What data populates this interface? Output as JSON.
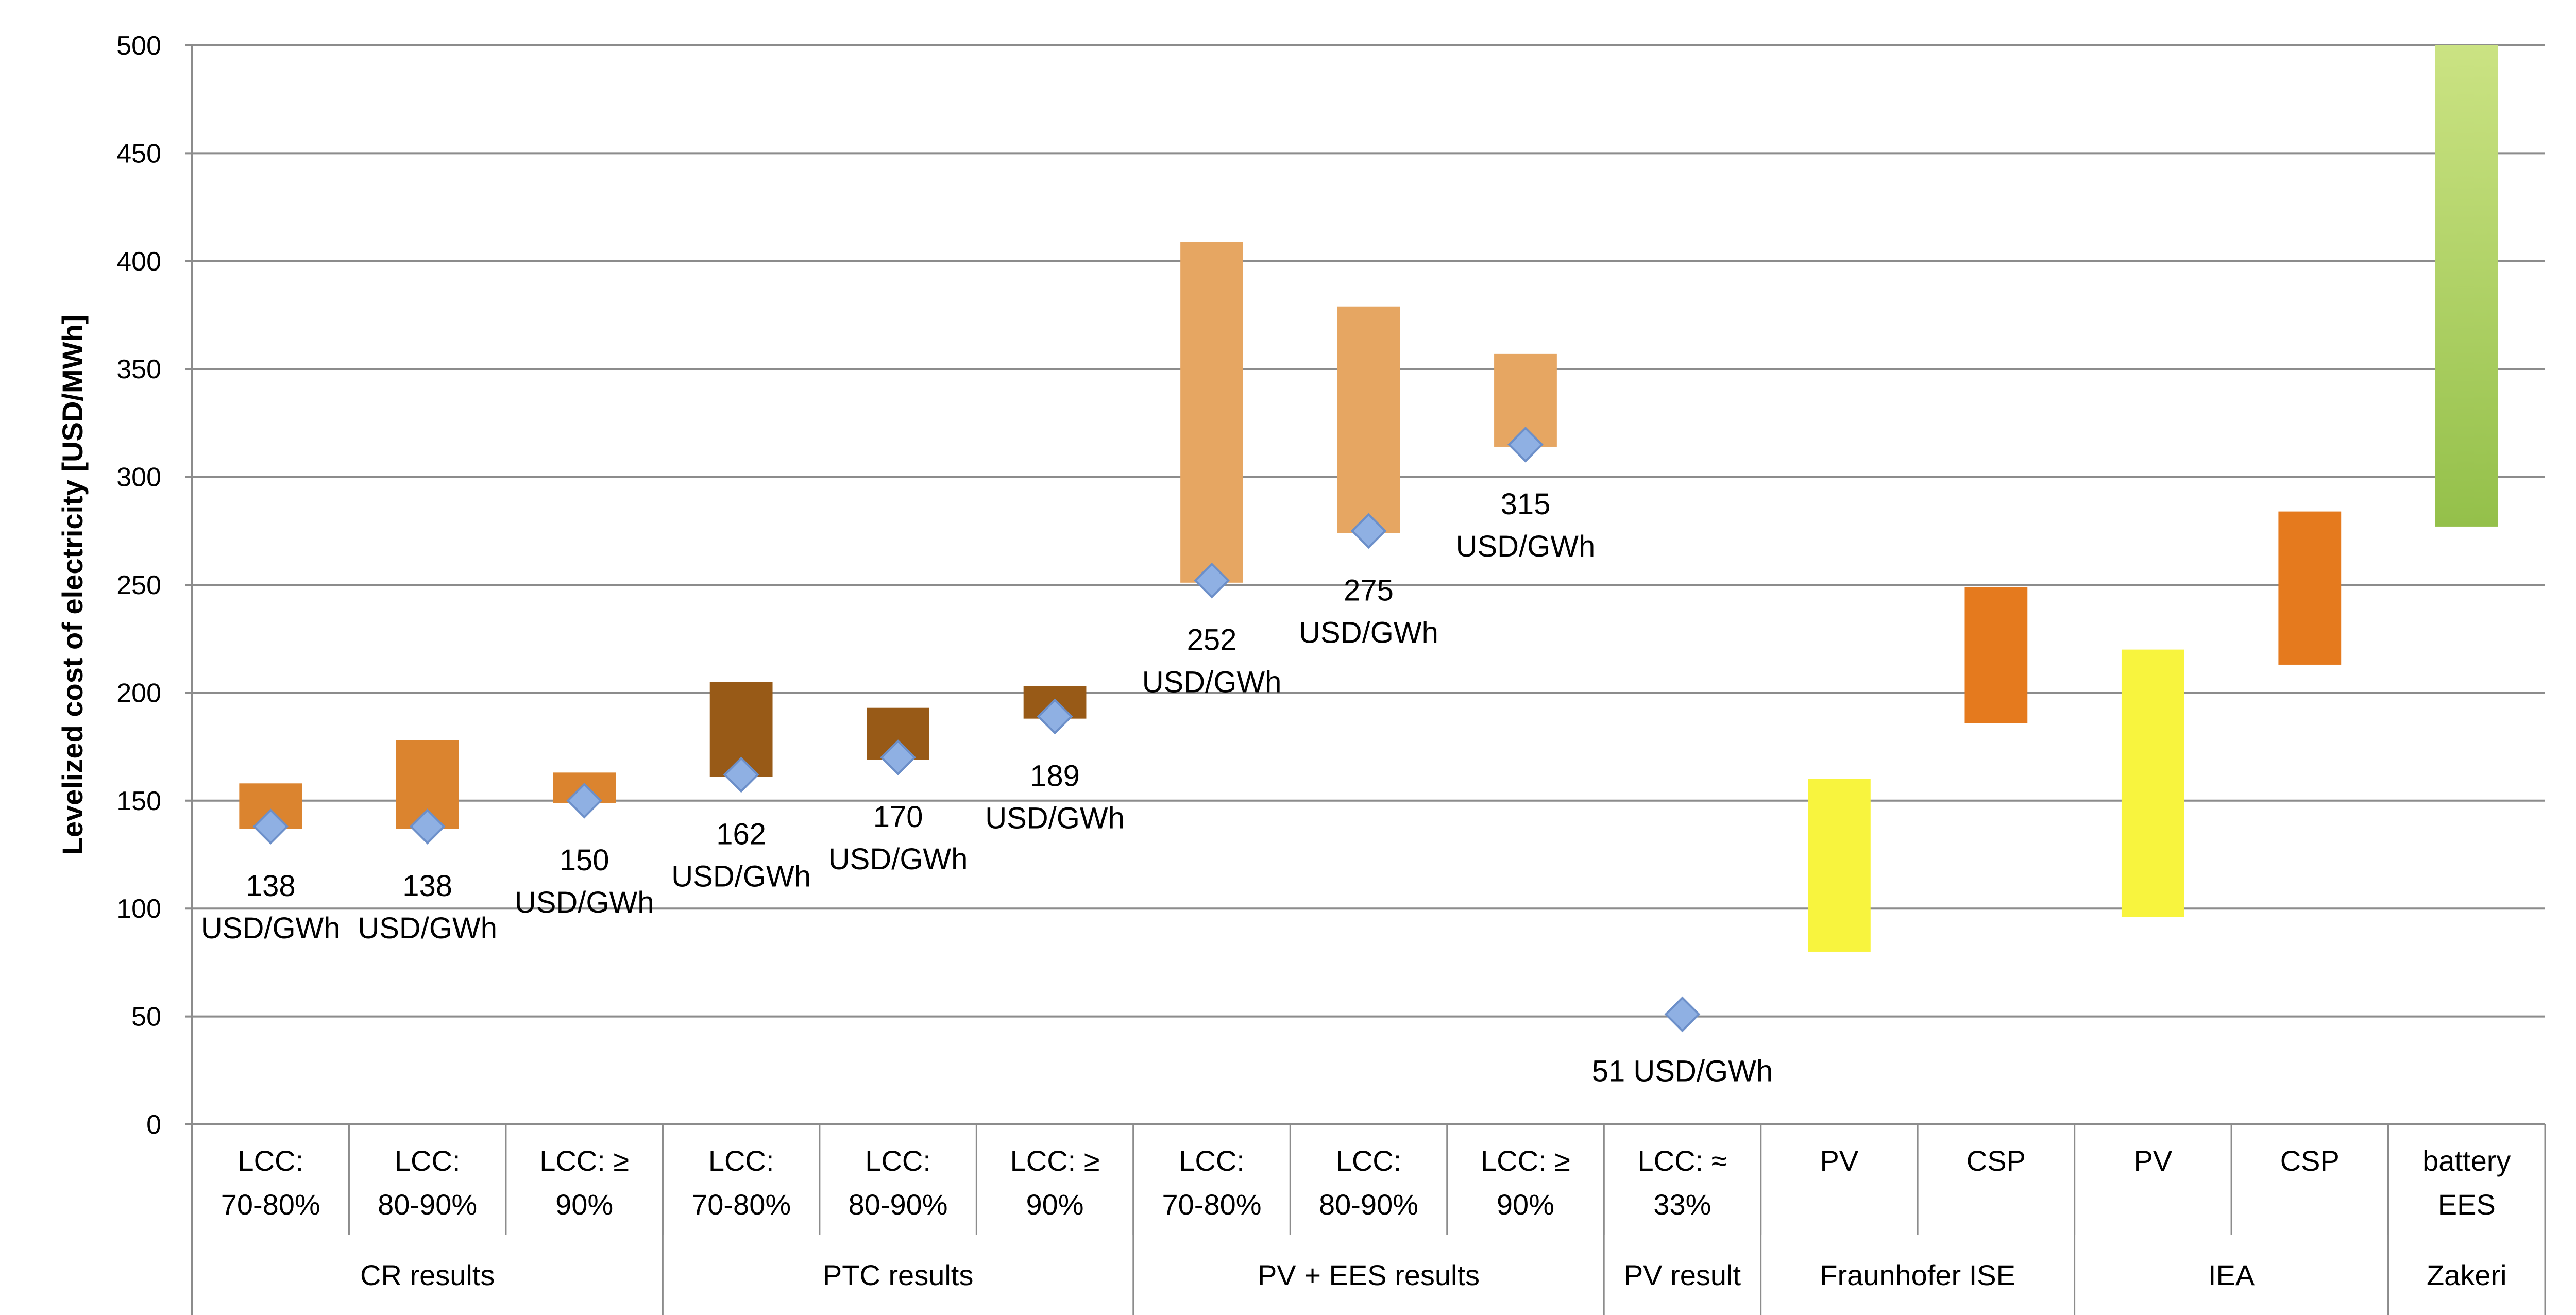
{
  "chart_data": {
    "type": "bar",
    "subtype": "floating-range-with-markers",
    "ylabel": "Levelized cost of electricity [USD/MWh]",
    "xlabel": "",
    "ylim": [
      0,
      500
    ],
    "yticks": [
      0,
      50,
      100,
      150,
      200,
      250,
      300,
      350,
      400,
      450,
      500
    ],
    "grid": true,
    "legend": "none",
    "groups": [
      {
        "label": "CR results",
        "span": [
          0,
          2
        ]
      },
      {
        "label": "PTC results",
        "span": [
          3,
          5
        ]
      },
      {
        "label": "PV + EES results",
        "span": [
          6,
          8
        ]
      },
      {
        "label": "PV result",
        "span": [
          9,
          9
        ]
      },
      {
        "label": "Fraunhofer ISE",
        "span": [
          10,
          11
        ]
      },
      {
        "label": "IEA",
        "span": [
          12,
          13
        ]
      },
      {
        "label": "Zakeri",
        "span": [
          14,
          14
        ]
      }
    ],
    "categories": [
      {
        "lines": [
          "LCC:",
          "70-80%"
        ],
        "low": 137,
        "high": 158,
        "color": "#DB842F",
        "marker": 138,
        "label": [
          "138",
          "USD/GWh"
        ]
      },
      {
        "lines": [
          "LCC:",
          "80-90%"
        ],
        "low": 137,
        "high": 178,
        "color": "#DB842F",
        "marker": 138,
        "label": [
          "138",
          "USD/GWh"
        ]
      },
      {
        "lines": [
          "LCC: ≥",
          "90%"
        ],
        "low": 149,
        "high": 163,
        "color": "#DB842F",
        "marker": 150,
        "label": [
          "150",
          "USD/GWh"
        ]
      },
      {
        "lines": [
          "LCC:",
          "70-80%"
        ],
        "low": 161,
        "high": 205,
        "color": "#985A17",
        "marker": 162,
        "label": [
          "162",
          "USD/GWh"
        ]
      },
      {
        "lines": [
          "LCC:",
          "80-90%"
        ],
        "low": 169,
        "high": 193,
        "color": "#985A17",
        "marker": 170,
        "label": [
          "170",
          "USD/GWh"
        ]
      },
      {
        "lines": [
          "LCC: ≥",
          "90%"
        ],
        "low": 188,
        "high": 203,
        "color": "#985A17",
        "marker": 189,
        "label": [
          "189",
          "USD/GWh"
        ]
      },
      {
        "lines": [
          "LCC:",
          "70-80%"
        ],
        "low": 251,
        "high": 409,
        "color": "#E6A662",
        "marker": 252,
        "label": [
          "252",
          "USD/GWh"
        ]
      },
      {
        "lines": [
          "LCC:",
          "80-90%"
        ],
        "low": 274,
        "high": 379,
        "color": "#E6A662",
        "marker": 275,
        "label": [
          "275",
          "USD/GWh"
        ]
      },
      {
        "lines": [
          "LCC: ≥",
          "90%"
        ],
        "low": 314,
        "high": 357,
        "color": "#E6A662",
        "marker": 315,
        "label": [
          "315",
          "USD/GWh"
        ]
      },
      {
        "lines": [
          "LCC: ≈",
          "33%"
        ],
        "low": null,
        "high": null,
        "color": null,
        "marker": 51,
        "label": [
          "51 USD/GWh"
        ]
      },
      {
        "lines": [
          "PV"
        ],
        "low": 80,
        "high": 160,
        "color": "#F8F43E",
        "marker": null,
        "label": []
      },
      {
        "lines": [
          "CSP"
        ],
        "low": 186,
        "high": 249,
        "color": "#E57A1E",
        "marker": null,
        "label": []
      },
      {
        "lines": [
          "PV"
        ],
        "low": 96,
        "high": 220,
        "color": "#F8F43E",
        "marker": null,
        "label": []
      },
      {
        "lines": [
          "CSP"
        ],
        "low": 213,
        "high": 284,
        "color": "#E57A1E",
        "marker": null,
        "label": []
      },
      {
        "lines": [
          "battery",
          "EES"
        ],
        "low": 277,
        "high": 500,
        "color": "#A9CF5F",
        "marker": null,
        "label": []
      }
    ],
    "colors": {
      "cr": "#DB842F",
      "ptc": "#985A17",
      "pv_ees": "#E6A662",
      "pv_yellow": "#F8F43E",
      "csp_orange": "#E57A1E",
      "battery_top": "#CBE383",
      "battery_bottom": "#94C04A",
      "marker_fill": "#8FB0E3",
      "marker_stroke": "#6C8FC9",
      "grid": "#8C8C8C"
    }
  }
}
